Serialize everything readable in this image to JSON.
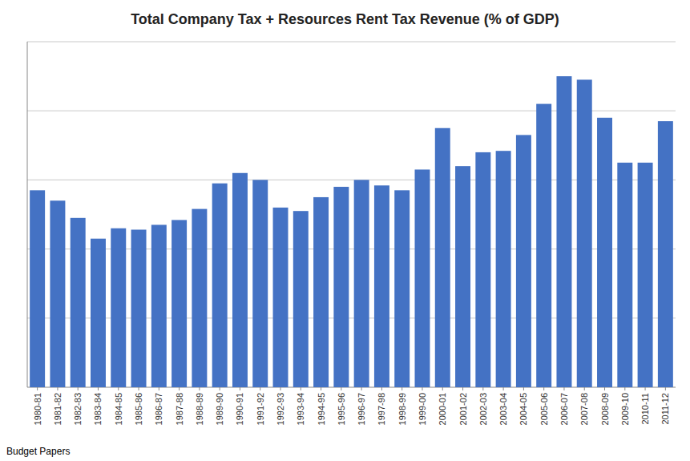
{
  "chart_data": {
    "type": "bar",
    "title": "Total Company Tax + Resources Rent Tax Revenue (% of GDP)",
    "source": "Budget Papers",
    "categories": [
      "1980-81",
      "1981-82",
      "1982-83",
      "1983-84",
      "1984-85",
      "1985-86",
      "1986-87",
      "1987-88",
      "1988-89",
      "1989-90",
      "1990-91",
      "1991-92",
      "1992-93",
      "1993-94",
      "1994-95",
      "1995-96",
      "1996-97",
      "1997-98",
      "1998-99",
      "1999-00",
      "2000-01",
      "2001-02",
      "2002-03",
      "2003-04",
      "2004-05",
      "2005-06",
      "2006-07",
      "2007-08",
      "2008-09",
      "2009-10",
      "2010-11",
      "2011-12"
    ],
    "values": [
      2.85,
      2.7,
      2.45,
      2.15,
      2.3,
      2.28,
      2.35,
      2.42,
      2.58,
      2.95,
      3.1,
      3.0,
      2.6,
      2.55,
      2.75,
      2.9,
      3.0,
      2.92,
      2.85,
      3.15,
      3.75,
      3.2,
      3.4,
      3.42,
      3.65,
      4.1,
      4.5,
      4.45,
      3.9,
      3.25,
      3.25,
      3.85
    ],
    "color": "#4472C4",
    "ylim": [
      0,
      5
    ],
    "yticks": [
      1,
      2,
      3,
      4,
      5
    ],
    "grid": true,
    "tick_labels": "x"
  }
}
